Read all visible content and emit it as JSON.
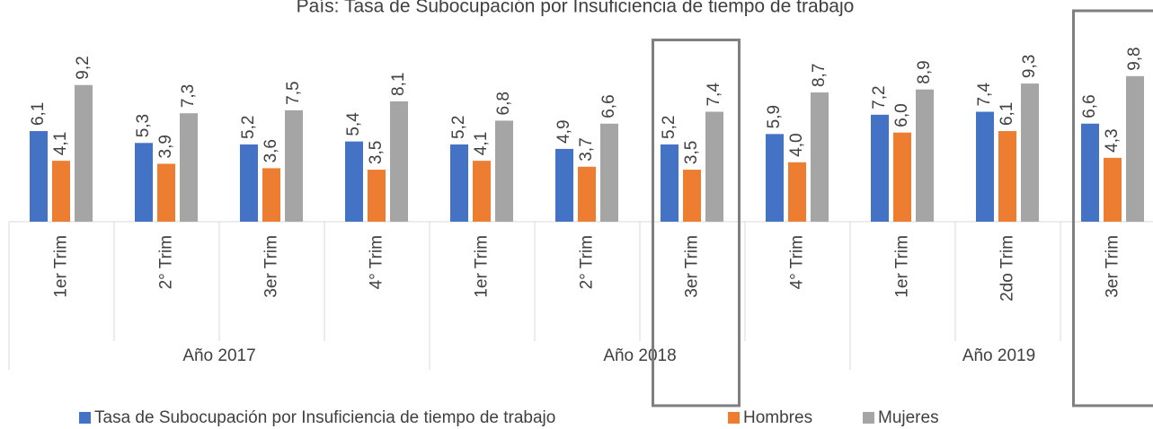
{
  "chart_data": {
    "type": "bar",
    "title": "País: Tasa de Subocupación por Insuficiencia de tiempo de trabajo",
    "groups": [
      {
        "name": "Año 2017",
        "categories": [
          "1er Trim",
          "2° Trim",
          "3er Trim",
          "4° Trim"
        ]
      },
      {
        "name": "Año 2018",
        "categories": [
          "1er Trim",
          "2° Trim",
          "3er Trim",
          "4° Trim"
        ]
      },
      {
        "name": "Año 2019",
        "categories": [
          "1er Trim",
          "2do Trim",
          "3er Trim"
        ]
      }
    ],
    "series": [
      {
        "name": "Tasa de Subocupación por Insuficiencia de tiempo de trabajo",
        "color": "#4472c4",
        "values": [
          6.1,
          5.3,
          5.2,
          5.4,
          5.2,
          4.9,
          5.2,
          5.9,
          7.2,
          7.4,
          6.6
        ],
        "value_labels": [
          "6,1",
          "5,3",
          "5,2",
          "5,4",
          "5,2",
          "4,9",
          "5,2",
          "5,9",
          "7,2",
          "7,4",
          "6,6"
        ]
      },
      {
        "name": "Hombres",
        "color": "#ed7d31",
        "values": [
          4.1,
          3.9,
          3.6,
          3.5,
          4.1,
          3.7,
          3.5,
          4.0,
          6.0,
          6.1,
          4.3
        ],
        "value_labels": [
          "4,1",
          "3,9",
          "3,6",
          "3,5",
          "4,1",
          "3,7",
          "3,5",
          "4,0",
          "6,0",
          "6,1",
          "4,3"
        ]
      },
      {
        "name": "Mujeres",
        "color": "#a5a5a5",
        "values": [
          9.2,
          7.3,
          7.5,
          8.1,
          6.8,
          6.6,
          7.4,
          8.7,
          8.9,
          9.3,
          9.8
        ],
        "value_labels": [
          "9,2",
          "7,3",
          "7,5",
          "8,1",
          "6,8",
          "6,6",
          "7,4",
          "8,7",
          "8,9",
          "9,3",
          "9,8"
        ]
      }
    ],
    "highlighted": [
      6,
      10
    ],
    "legend": "bottom"
  }
}
